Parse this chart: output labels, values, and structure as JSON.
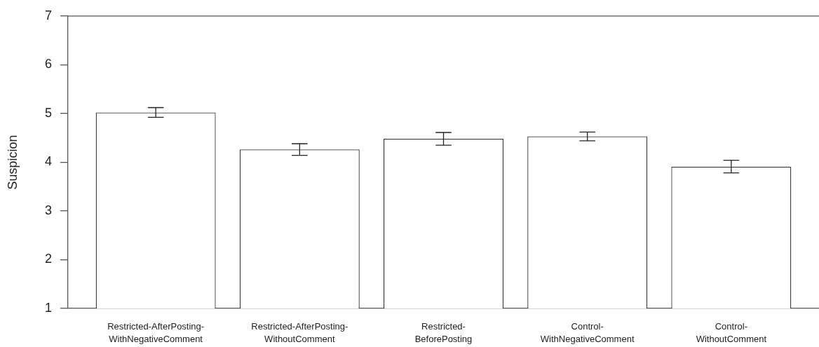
{
  "chart_data": {
    "type": "bar",
    "ylabel": "Suspicion",
    "categories": [
      "Restricted-AfterPosting-WithNegativeComment",
      "Restricted-AfterPosting-WithoutComment",
      "Restricted-BeforePosting",
      "Control-WithNegativeComment",
      "Control-WithoutComment"
    ],
    "values": [
      5.02,
      4.26,
      4.48,
      4.53,
      3.91
    ],
    "errors": [
      0.1,
      0.12,
      0.13,
      0.09,
      0.13
    ],
    "color": "#ffffff",
    "ylim": [
      1,
      7
    ],
    "yticks": [
      1,
      2,
      3,
      4,
      5,
      6,
      7
    ]
  }
}
